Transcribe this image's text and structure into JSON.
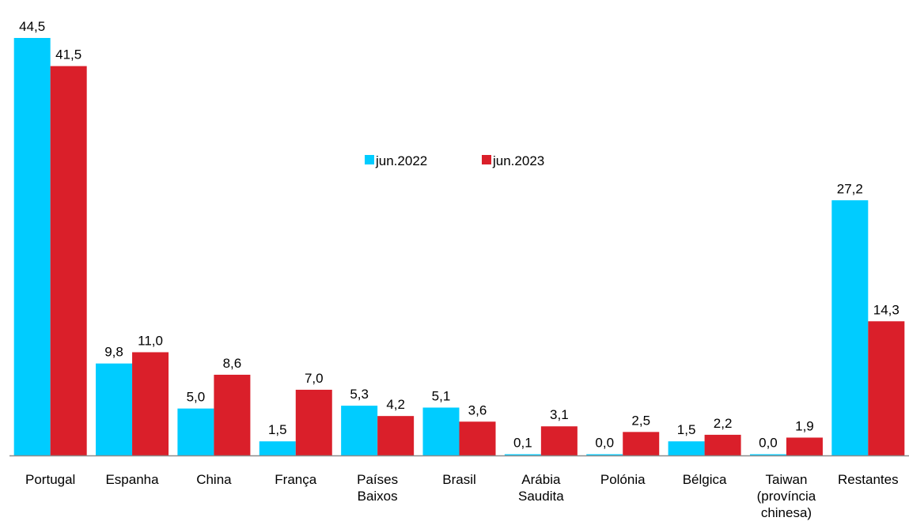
{
  "chart_data": {
    "type": "bar",
    "categories": [
      [
        "Portugal"
      ],
      [
        "Espanha"
      ],
      [
        "China"
      ],
      [
        "França"
      ],
      [
        "Países",
        "Baixos"
      ],
      [
        "Brasil"
      ],
      [
        "Arábia",
        "Saudita"
      ],
      [
        "Polónia"
      ],
      [
        "Bélgica"
      ],
      [
        "Taiwan",
        "(província",
        "chinesa)"
      ],
      [
        "Restantes"
      ]
    ],
    "series": [
      {
        "name": "jun.2022",
        "color": "#00CCFF",
        "values": [
          44.5,
          9.8,
          5.0,
          1.5,
          5.3,
          5.1,
          0.1,
          0.0,
          1.5,
          0.0,
          27.2
        ],
        "labels": [
          "44,5",
          "9,8",
          "5,0",
          "1,5",
          "5,3",
          "5,1",
          "0,1",
          "0,0",
          "1,5",
          "0,0",
          "27,2"
        ]
      },
      {
        "name": "jun.2023",
        "color": "#DA1F2A",
        "values": [
          41.5,
          11.0,
          8.6,
          7.0,
          4.2,
          3.6,
          3.1,
          2.5,
          2.2,
          1.9,
          14.3
        ],
        "labels": [
          "41,5",
          "11,0",
          "8,6",
          "7,0",
          "4,2",
          "3,6",
          "3,1",
          "2,5",
          "2,2",
          "1,9",
          "14,3"
        ]
      }
    ],
    "ylim": [
      0,
      44.5
    ],
    "legend_position": "center",
    "grid": false,
    "axis_color": "#8C8C8C"
  }
}
